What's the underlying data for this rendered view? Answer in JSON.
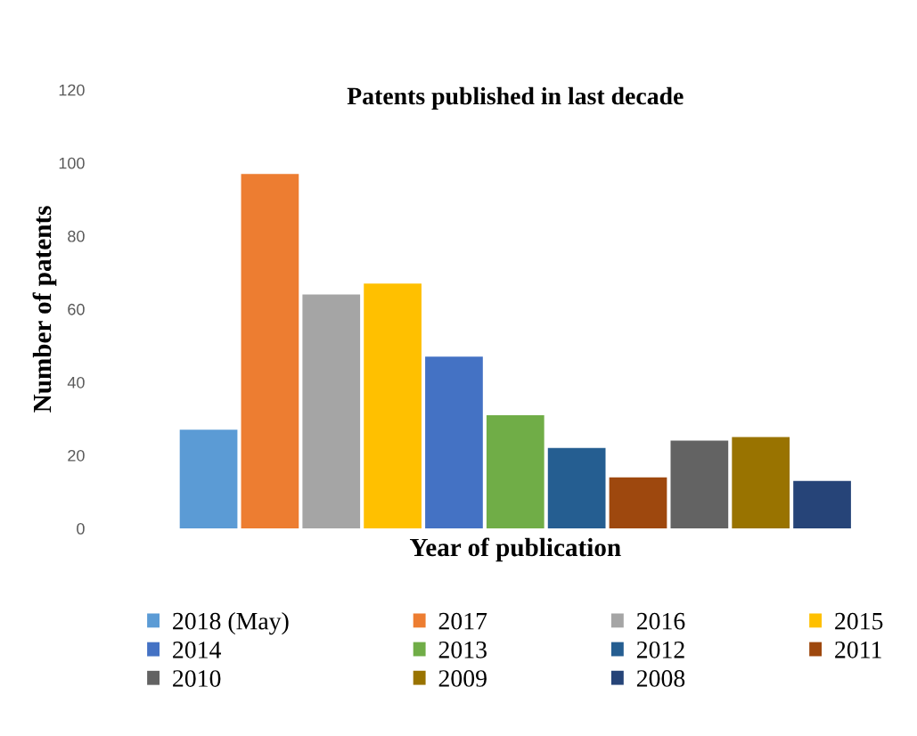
{
  "chart_data": {
    "type": "bar",
    "title": "Patents published in last decade",
    "xlabel": "Year of publication",
    "ylabel": "Number of patents",
    "categories": [
      null
    ],
    "series": [
      {
        "name": "2018 (May)",
        "color": "#5b9bd5",
        "values": [
          27
        ]
      },
      {
        "name": "2017",
        "color": "#ed7d31",
        "values": [
          97
        ]
      },
      {
        "name": "2016",
        "color": "#a5a5a5",
        "values": [
          64
        ]
      },
      {
        "name": "2015",
        "color": "#ffc000",
        "values": [
          67
        ]
      },
      {
        "name": "2014",
        "color": "#4472c4",
        "values": [
          47
        ]
      },
      {
        "name": "2013",
        "color": "#70ad47",
        "values": [
          31
        ]
      },
      {
        "name": "2012",
        "color": "#255e91",
        "values": [
          22
        ]
      },
      {
        "name": "2011",
        "color": "#9e480e",
        "values": [
          14
        ]
      },
      {
        "name": "2010",
        "color": "#636363",
        "values": [
          24
        ]
      },
      {
        "name": "2009",
        "color": "#997300",
        "values": [
          25
        ]
      },
      {
        "name": "2008",
        "color": "#264478",
        "values": [
          13
        ]
      }
    ],
    "ylim": [
      0,
      120
    ],
    "yticks": [
      0,
      20,
      40,
      60,
      80,
      100,
      120
    ],
    "grid": false,
    "legend": "bottom"
  }
}
